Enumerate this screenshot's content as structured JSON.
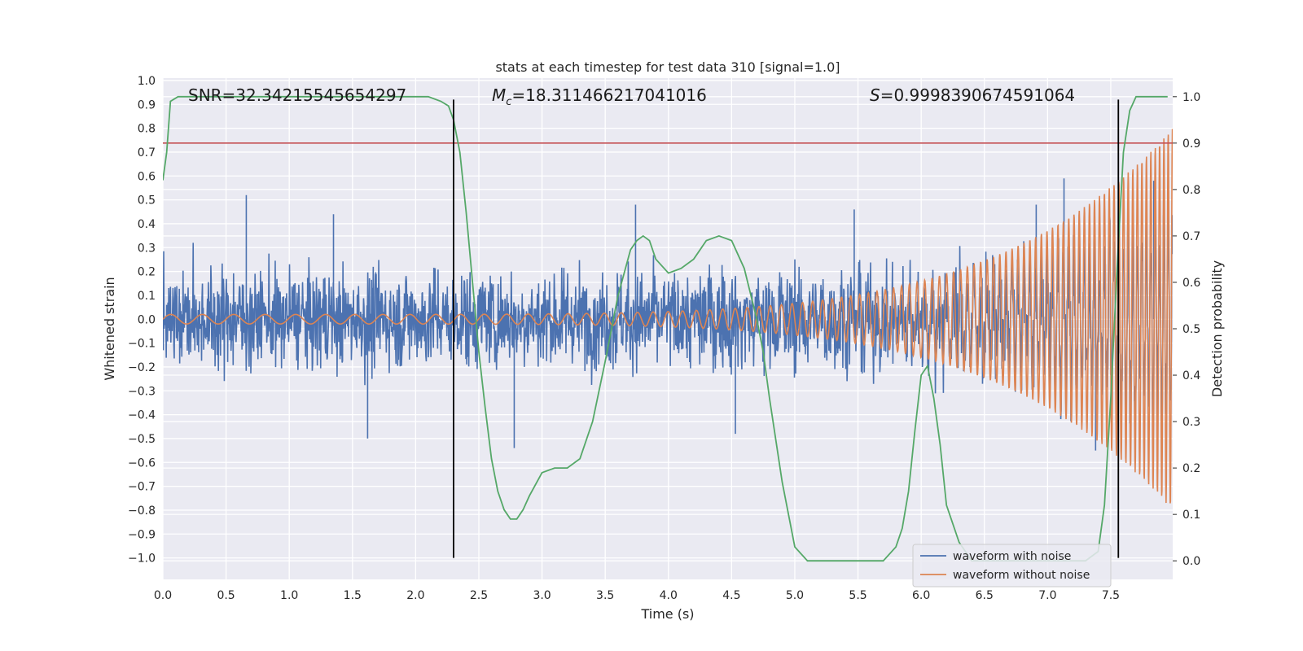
{
  "chart_data": {
    "type": "line",
    "title": "stats at each timestep for test data 310 [signal=1.0]",
    "xlabel": "Time (s)",
    "ylabel": "Whitened strain",
    "y2label": "Detection probability",
    "xlim": [
      0.0,
      7.99
    ],
    "ylim": [
      -1.09,
      1.01
    ],
    "y2lim": [
      -0.04,
      1.04
    ],
    "x_ticks": [
      0.0,
      0.5,
      1.0,
      1.5,
      2.0,
      2.5,
      3.0,
      3.5,
      4.0,
      4.5,
      5.0,
      5.5,
      6.0,
      6.5,
      7.0,
      7.5
    ],
    "x_tick_labels": [
      "0.0",
      "0.5",
      "1.0",
      "1.5",
      "2.0",
      "2.5",
      "3.0",
      "3.5",
      "4.0",
      "4.5",
      "5.0",
      "5.5",
      "6.0",
      "6.5",
      "7.0",
      "7.5"
    ],
    "y_ticks": [
      1.0,
      0.9,
      0.8,
      0.7,
      0.6,
      0.5,
      0.4,
      0.3,
      0.2,
      0.1,
      0.0,
      -0.1,
      -0.2,
      -0.3,
      -0.4,
      -0.5,
      -0.6,
      -0.7,
      -0.8,
      -0.9,
      -1.0
    ],
    "y_tick_labels": [
      "1.0",
      "0.9",
      "0.8",
      "0.7",
      "0.6",
      "0.5",
      "0.4",
      "0.3",
      "0.2",
      "0.1",
      "0.0",
      "−0.1",
      "−0.2",
      "−0.3",
      "−0.4",
      "−0.5",
      "−0.6",
      "−0.7",
      "−0.8",
      "−0.9",
      "−1.0"
    ],
    "y2_ticks": [
      1.0,
      0.9,
      0.8,
      0.7,
      0.6,
      0.5,
      0.4,
      0.3,
      0.2,
      0.1,
      0.0
    ],
    "y2_tick_labels": [
      "1.0",
      "0.9",
      "0.8",
      "0.7",
      "0.6",
      "0.5",
      "0.4",
      "0.3",
      "0.2",
      "0.1",
      "0.0"
    ],
    "grid": true,
    "annotations": {
      "snr": "SNR=32.34215545654297",
      "mc_symbol": "M",
      "mc_sub": "c",
      "mc_value": "=18.311466217041016",
      "s_symbol": "S",
      "s_value": "=0.9998390674591064"
    },
    "legend": {
      "position": "lower-right",
      "entries": [
        {
          "label": "waveform with noise",
          "color": "#4c72b0"
        },
        {
          "label": "waveform without noise",
          "color": "#dd8452"
        }
      ]
    },
    "series": [
      {
        "name": "waveform with noise",
        "axis": "left",
        "color": "#4c72b0",
        "kind": "noise",
        "typical_amplitude": 0.2,
        "peaks": [
          {
            "x": 0.66,
            "y": 0.52
          },
          {
            "x": 1.35,
            "y": 0.44
          },
          {
            "x": 1.62,
            "y": -0.5
          },
          {
            "x": 3.74,
            "y": 0.48
          },
          {
            "x": 2.78,
            "y": -0.54
          },
          {
            "x": 4.53,
            "y": -0.48
          },
          {
            "x": 5.47,
            "y": 0.46
          },
          {
            "x": 6.91,
            "y": 0.48
          },
          {
            "x": 7.13,
            "y": 0.59
          },
          {
            "x": 7.38,
            "y": -0.55
          },
          {
            "x": 7.84,
            "y": 0.58
          }
        ]
      },
      {
        "name": "waveform without noise",
        "axis": "left",
        "color": "#dd8452",
        "kind": "chirp",
        "start_amplitude": 0.02,
        "end_amplitude": 0.8,
        "start_frequency_hz": 4,
        "end_frequency_hz": 30
      },
      {
        "name": "detection probability",
        "axis": "right",
        "color": "#55a868",
        "x": [
          0.0,
          0.03,
          0.06,
          0.12,
          0.2,
          0.5,
          1.0,
          1.5,
          2.0,
          2.1,
          2.2,
          2.26,
          2.3,
          2.35,
          2.4,
          2.45,
          2.5,
          2.55,
          2.6,
          2.65,
          2.7,
          2.75,
          2.8,
          2.85,
          2.9,
          3.0,
          3.1,
          3.2,
          3.3,
          3.4,
          3.5,
          3.6,
          3.7,
          3.75,
          3.8,
          3.85,
          3.9,
          4.0,
          4.1,
          4.2,
          4.3,
          4.4,
          4.5,
          4.6,
          4.7,
          4.75,
          4.8,
          4.9,
          5.0,
          5.1,
          5.2,
          5.3,
          5.4,
          5.5,
          5.6,
          5.7,
          5.8,
          5.85,
          5.9,
          5.95,
          6.0,
          6.05,
          6.1,
          6.15,
          6.2,
          6.3,
          6.4,
          6.5,
          6.7,
          6.9,
          7.1,
          7.3,
          7.4,
          7.45,
          7.5,
          7.55,
          7.6,
          7.65,
          7.7,
          7.75,
          7.8,
          7.95
        ],
        "values": [
          0.82,
          0.88,
          0.99,
          1.0,
          1.0,
          1.0,
          1.0,
          1.0,
          1.0,
          1.0,
          0.99,
          0.98,
          0.95,
          0.88,
          0.75,
          0.6,
          0.45,
          0.33,
          0.22,
          0.15,
          0.11,
          0.09,
          0.09,
          0.11,
          0.14,
          0.19,
          0.2,
          0.2,
          0.22,
          0.3,
          0.43,
          0.57,
          0.67,
          0.69,
          0.7,
          0.69,
          0.65,
          0.62,
          0.63,
          0.65,
          0.69,
          0.7,
          0.69,
          0.63,
          0.52,
          0.45,
          0.35,
          0.17,
          0.03,
          0.0,
          0.0,
          0.0,
          0.0,
          0.0,
          0.0,
          0.0,
          0.03,
          0.07,
          0.15,
          0.28,
          0.4,
          0.42,
          0.35,
          0.25,
          0.12,
          0.04,
          0.0,
          0.0,
          0.0,
          0.0,
          0.0,
          0.0,
          0.02,
          0.12,
          0.35,
          0.63,
          0.88,
          0.97,
          1.0,
          1.0,
          1.0,
          1.0
        ]
      },
      {
        "name": "threshold",
        "axis": "right",
        "color": "#c44e52",
        "kind": "hline",
        "value": 0.9
      },
      {
        "name": "detection boundaries",
        "axis": "left",
        "color": "#000000",
        "kind": "vlines",
        "x": [
          2.3,
          7.56
        ],
        "y_range": [
          -1.0,
          0.92
        ]
      }
    ]
  }
}
